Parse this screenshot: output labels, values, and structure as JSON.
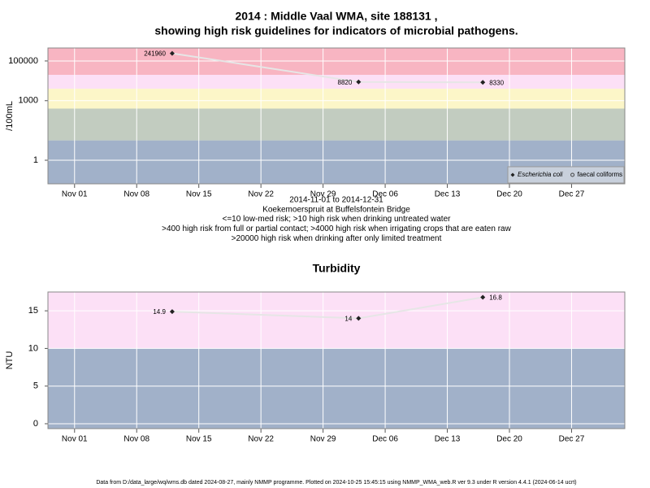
{
  "page_title": [
    "2014 : Middle Vaal WMA, site 188131 ,",
    "showing high risk guidelines for indicators of microbial pathogens."
  ],
  "chart_data": [
    {
      "type": "line",
      "y_label": "/100mL",
      "log_y": true,
      "x": [
        "2014-11-12",
        "2014-12-03",
        "2014-12-17"
      ],
      "xlim": [
        "2014-10-29",
        "2015-01-02"
      ],
      "xticks": [
        {
          "value": "2014-11-01",
          "label": "Nov 01"
        },
        {
          "value": "2014-11-08",
          "label": "Nov 08"
        },
        {
          "value": "2014-11-15",
          "label": "Nov 15"
        },
        {
          "value": "2014-11-22",
          "label": "Nov 22"
        },
        {
          "value": "2014-11-29",
          "label": "Nov 29"
        },
        {
          "value": "2014-12-06",
          "label": "Dec 06"
        },
        {
          "value": "2014-12-13",
          "label": "Dec 13"
        },
        {
          "value": "2014-12-20",
          "label": "Dec 20"
        },
        {
          "value": "2014-12-27",
          "label": "Dec 27"
        }
      ],
      "ylim": [
        0.065,
        450000
      ],
      "yticks": [
        1,
        1000,
        100000
      ],
      "bands": [
        {
          "from": 0.065,
          "to": 10,
          "color": "#a1b1c9"
        },
        {
          "from": 10,
          "to": 400,
          "color": "#c2ccc0"
        },
        {
          "from": 400,
          "to": 4000,
          "color": "#fcf6c8"
        },
        {
          "from": 4000,
          "to": 20000,
          "color": "#fce0f6"
        },
        {
          "from": 20000,
          "to": 450000,
          "color": "#f8b5c2"
        }
      ],
      "line_color": "#e6e6e6",
      "grid": true,
      "legend": "bottom-right",
      "series": [
        {
          "name": "Escherichia coli",
          "marker": "diamond",
          "name_style": "italic",
          "color": "#222222",
          "values": [
            241960,
            8820,
            8330
          ]
        },
        {
          "name": "faecal coliforms",
          "marker": "circle",
          "name_style": "normal",
          "color": "#444444",
          "values": [
            null,
            null,
            null
          ]
        }
      ],
      "notes": [
        "2014-11-01 to 2014-12-31",
        "Koekemoerspruit at Buffelsfontein Bridge",
        "<=10 low-med risk; >10 high risk when drinking untreated water",
        ">400 high risk from full or partial contact; >4000 high risk when irrigating crops that are eaten raw",
        ">20000 high risk when drinking after only limited treatment"
      ]
    },
    {
      "type": "line",
      "title": "Turbidity",
      "y_label": "NTU",
      "log_y": false,
      "x": [
        "2014-11-12",
        "2014-12-03",
        "2014-12-17"
      ],
      "xlim": [
        "2014-10-29",
        "2015-01-02"
      ],
      "xticks": [
        {
          "value": "2014-11-01",
          "label": "Nov 01"
        },
        {
          "value": "2014-11-08",
          "label": "Nov 08"
        },
        {
          "value": "2014-11-15",
          "label": "Nov 15"
        },
        {
          "value": "2014-11-22",
          "label": "Nov 22"
        },
        {
          "value": "2014-11-29",
          "label": "Nov 29"
        },
        {
          "value": "2014-12-06",
          "label": "Dec 06"
        },
        {
          "value": "2014-12-13",
          "label": "Dec 13"
        },
        {
          "value": "2014-12-20",
          "label": "Dec 20"
        },
        {
          "value": "2014-12-27",
          "label": "Dec 27"
        }
      ],
      "ylim": [
        -0.65,
        17.5
      ],
      "yticks": [
        0,
        5,
        10,
        15
      ],
      "bands": [
        {
          "from": -0.65,
          "to": 10,
          "color": "#a1b1c9"
        },
        {
          "from": 10,
          "to": 17.5,
          "color": "#fce0f6"
        }
      ],
      "line_color": "#e6e6e6",
      "grid": true,
      "series": [
        {
          "marker": "diamond",
          "color": "#222222",
          "values": [
            14.9,
            14,
            16.8
          ]
        }
      ]
    }
  ],
  "footer": "Data from D:/data_large/wq/wms.db dated 2024-08-27, mainly NMMP programme. Plotted on 2024-10-25 15:45:15 using NMMP_WMA_web.R ver 9.3 under R version 4.4.1 (2024-06-14 ucrt)"
}
